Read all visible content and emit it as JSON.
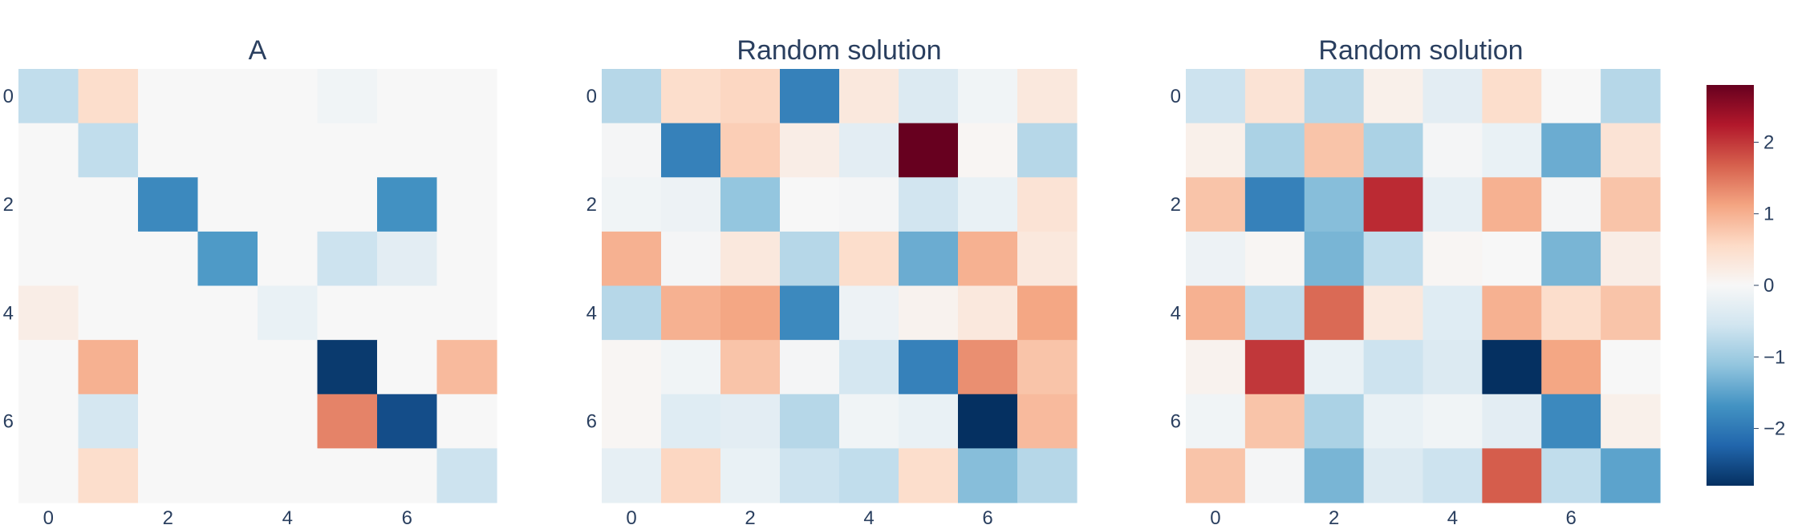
{
  "chart_data": [
    {
      "type": "heatmap",
      "title": "A",
      "x_ticks": [
        0,
        2,
        4,
        6
      ],
      "y_ticks": [
        0,
        2,
        4,
        6
      ],
      "z": [
        [
          -0.7,
          0.5,
          0,
          0,
          0,
          -0.1,
          0,
          0
        ],
        [
          0,
          -0.7,
          0,
          0,
          0,
          0,
          0,
          0
        ],
        [
          0,
          0,
          -1.8,
          0,
          0,
          0,
          -1.7,
          0
        ],
        [
          0,
          0,
          0,
          -1.6,
          0,
          -0.6,
          -0.3,
          0
        ],
        [
          0.2,
          0,
          0,
          0,
          -0.2,
          0,
          0,
          0
        ],
        [
          0,
          1.0,
          0,
          0,
          0,
          -2.7,
          0,
          0.9
        ],
        [
          0,
          -0.5,
          0,
          0,
          0,
          1.4,
          -2.5,
          0
        ],
        [
          0,
          0.5,
          0,
          0,
          0,
          0,
          0,
          -0.6
        ]
      ]
    },
    {
      "type": "heatmap",
      "title": "Random solution",
      "x_ticks": [
        0,
        2,
        4,
        6
      ],
      "y_ticks": [
        0,
        2,
        4,
        6
      ],
      "z": [
        [
          -0.8,
          0.5,
          0.6,
          -1.9,
          0.3,
          -0.4,
          -0.1,
          0.3
        ],
        [
          -0.05,
          -1.9,
          0.7,
          0.2,
          -0.3,
          2.8,
          0.05,
          -0.8
        ],
        [
          -0.1,
          -0.15,
          -1.1,
          0,
          -0.05,
          -0.55,
          -0.2,
          0.4
        ],
        [
          1.0,
          -0.05,
          0.3,
          -0.8,
          0.5,
          -1.4,
          1.0,
          0.3
        ],
        [
          -0.8,
          1.0,
          1.1,
          -1.8,
          -0.15,
          0.1,
          0.3,
          1.1
        ],
        [
          0.05,
          -0.1,
          0.8,
          -0.05,
          -0.5,
          -1.9,
          1.3,
          0.8
        ],
        [
          0.05,
          -0.35,
          -0.3,
          -0.8,
          -0.1,
          -0.2,
          -2.8,
          0.9
        ],
        [
          -0.25,
          0.6,
          -0.2,
          -0.6,
          -0.7,
          0.5,
          -1.2,
          -0.8
        ]
      ]
    },
    {
      "type": "heatmap",
      "title": "Random solution",
      "x_ticks": [
        0,
        2,
        4,
        6
      ],
      "y_ticks": [
        0,
        2,
        4,
        6
      ],
      "z": [
        [
          -0.6,
          0.4,
          -0.8,
          0.15,
          -0.3,
          0.5,
          0,
          -0.8
        ],
        [
          0.15,
          -0.9,
          0.8,
          -0.9,
          -0.05,
          -0.2,
          -1.4,
          0.4
        ],
        [
          0.8,
          -1.9,
          -1.2,
          2.1,
          -0.25,
          1.0,
          -0.05,
          0.8
        ],
        [
          -0.15,
          0.05,
          -1.3,
          -0.7,
          0.05,
          0,
          -1.3,
          0.2
        ],
        [
          1.0,
          -0.7,
          1.6,
          0.3,
          -0.35,
          1.0,
          0.5,
          0.8
        ],
        [
          0.1,
          2.0,
          -0.2,
          -0.6,
          -0.4,
          -2.9,
          1.1,
          0
        ],
        [
          -0.1,
          0.8,
          -0.9,
          -0.2,
          -0.1,
          -0.3,
          -1.8,
          0.15
        ],
        [
          0.8,
          -0.05,
          -1.3,
          -0.4,
          -0.6,
          1.7,
          -0.7,
          -1.5
        ]
      ]
    }
  ],
  "colorbar": {
    "min": -2.8,
    "max": 2.8,
    "ticks": [
      {
        "value": 2,
        "label": "2"
      },
      {
        "value": 1,
        "label": "1"
      },
      {
        "value": 0,
        "label": "0"
      },
      {
        "value": -1,
        "label": "−1"
      },
      {
        "value": -2,
        "label": "−2"
      }
    ],
    "colorscale": [
      "#053061",
      "#2166ac",
      "#4393c3",
      "#92c5de",
      "#d1e5f0",
      "#f7f7f7",
      "#fddbc7",
      "#f4a582",
      "#d6604d",
      "#b2182b",
      "#67001f"
    ]
  }
}
